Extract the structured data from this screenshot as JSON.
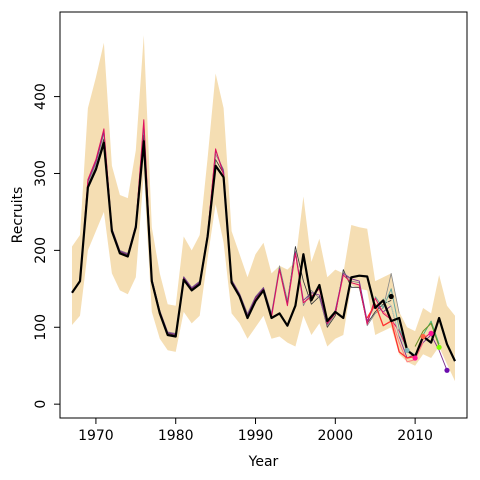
{
  "chart_data": {
    "type": "line",
    "title": "",
    "xlabel": "Year",
    "ylabel": "Recruits",
    "xlim": [
      1965.5,
      2016.5
    ],
    "ylim": [
      -18,
      510
    ],
    "xticks": [
      1970,
      1980,
      1990,
      2000,
      2010
    ],
    "yticks": [
      0,
      100,
      200,
      300,
      400
    ],
    "grid": false,
    "legend": "none",
    "band": {
      "color": "#f5deb3",
      "x": [
        1967,
        1968,
        1969,
        1970,
        1971,
        1972,
        1973,
        1974,
        1975,
        1976,
        1977,
        1978,
        1979,
        1980,
        1981,
        1982,
        1983,
        1984,
        1985,
        1986,
        1987,
        1988,
        1989,
        1990,
        1991,
        1992,
        1993,
        1994,
        1995,
        1996,
        1997,
        1998,
        1999,
        2000,
        2001,
        2002,
        2003,
        2004,
        2005,
        2006,
        2007,
        2008,
        2009,
        2010,
        2011,
        2012,
        2013,
        2014,
        2015
      ],
      "upper": [
        205,
        220,
        385,
        425,
        470,
        310,
        272,
        268,
        330,
        480,
        230,
        170,
        130,
        128,
        218,
        200,
        220,
        320,
        430,
        385,
        225,
        195,
        165,
        195,
        210,
        170,
        180,
        175,
        185,
        270,
        185,
        215,
        165,
        175,
        170,
        233,
        230,
        228,
        160,
        165,
        170,
        120,
        100,
        95,
        125,
        118,
        168,
        128,
        115
      ],
      "lower": [
        103,
        115,
        200,
        225,
        250,
        170,
        148,
        143,
        165,
        300,
        120,
        85,
        70,
        68,
        120,
        105,
        115,
        190,
        260,
        210,
        118,
        105,
        85,
        100,
        115,
        85,
        88,
        80,
        75,
        115,
        90,
        105,
        75,
        85,
        90,
        155,
        150,
        148,
        90,
        95,
        100,
        65,
        55,
        50,
        65,
        60,
        75,
        52,
        30
      ]
    },
    "series": [
      {
        "color": "#000000",
        "width": 2.2,
        "x": [
          1967,
          1968,
          1969,
          1970,
          1971,
          1972,
          1973,
          1974,
          1975,
          1976,
          1977,
          1978,
          1979,
          1980,
          1981,
          1982,
          1983,
          1984,
          1985,
          1986,
          1987,
          1988,
          1989,
          1990,
          1991,
          1992,
          1993,
          1994,
          1995,
          1996,
          1997,
          1998,
          1999,
          2000,
          2001,
          2002,
          2003,
          2004,
          2005,
          2006,
          2007,
          2008,
          2009,
          2010,
          2011,
          2012,
          2013,
          2014,
          2015
        ],
        "y": [
          145,
          160,
          282,
          305,
          340,
          225,
          196,
          192,
          230,
          342,
          160,
          118,
          90,
          88,
          162,
          148,
          156,
          218,
          310,
          295,
          158,
          140,
          112,
          134,
          148,
          112,
          118,
          102,
          128,
          195,
          135,
          155,
          108,
          120,
          112,
          165,
          167,
          166,
          125,
          135,
          108,
          112,
          70,
          62,
          88,
          80,
          112,
          78,
          56
        ]
      },
      {
        "color": "#333333",
        "width": 0.8,
        "x": [
          1967,
          1968,
          1969,
          1970,
          1971,
          1972,
          1973,
          1974,
          1975,
          1976,
          1977,
          1978,
          1979,
          1980,
          1981,
          1982,
          1983,
          1984,
          1985,
          1986,
          1987,
          1988,
          1989,
          1990,
          1991,
          1992,
          1993,
          1994,
          1995,
          1996,
          1997,
          1998,
          1999,
          2000,
          2001,
          2002,
          2003,
          2004,
          2005,
          2006,
          2007
        ],
        "y": [
          145,
          160,
          285,
          308,
          345,
          227,
          198,
          194,
          232,
          350,
          162,
          120,
          92,
          90,
          164,
          150,
          158,
          220,
          318,
          300,
          160,
          142,
          115,
          138,
          150,
          115,
          178,
          132,
          205,
          160,
          130,
          140,
          100,
          115,
          175,
          152,
          152,
          105,
          120,
          130,
          135
        ]
      },
      {
        "color": "#888888",
        "width": 0.8,
        "x": [
          1967,
          1968,
          1969,
          1970,
          1971,
          1972,
          1973,
          1974,
          1975,
          1976,
          1977,
          1978,
          1979,
          1980,
          1981,
          1982,
          1983,
          1984,
          1985,
          1986,
          1987,
          1988,
          1989,
          1990,
          1991,
          1992,
          1993,
          1994,
          1995,
          1996,
          1997,
          1998,
          1999,
          2000,
          2001,
          2002,
          2003,
          2004,
          2005,
          2006,
          2007,
          2008
        ],
        "y": [
          145,
          160,
          288,
          312,
          352,
          229,
          200,
          196,
          234,
          360,
          164,
          122,
          94,
          92,
          166,
          152,
          160,
          222,
          325,
          305,
          162,
          144,
          118,
          140,
          152,
          118,
          180,
          135,
          200,
          128,
          148,
          138,
          102,
          118,
          172,
          160,
          158,
          102,
          118,
          125,
          170,
          118
        ]
      },
      {
        "color": "#7b2d8e",
        "width": 0.9,
        "x": [
          1967,
          1968,
          1969,
          1970,
          1971,
          1972,
          1973,
          1974,
          1975,
          1976,
          1977,
          1978,
          1979,
          1980,
          1981,
          1982,
          1983,
          1984,
          1985,
          1986,
          1987,
          1988,
          1989,
          1990,
          1991,
          1992,
          1993,
          1994,
          1995,
          1996,
          1997,
          1998,
          1999,
          2000,
          2001,
          2002,
          2003,
          2004,
          2005,
          2006,
          2007,
          2008,
          2009,
          2010,
          2011,
          2012,
          2013,
          2014
        ],
        "y": [
          145,
          160,
          290,
          315,
          355,
          228,
          199,
          195,
          233,
          365,
          163,
          121,
          93,
          91,
          165,
          151,
          159,
          221,
          330,
          302,
          161,
          143,
          116,
          139,
          151,
          116,
          176,
          130,
          198,
          135,
          145,
          142,
          104,
          122,
          170,
          163,
          160,
          108,
          130,
          120,
          128,
          88,
          60,
          65,
          80,
          90,
          70,
          44
        ]
      },
      {
        "color": "#e0115f",
        "width": 1.0,
        "x": [
          1967,
          1968,
          1969,
          1970,
          1971,
          1972,
          1973,
          1974,
          1975,
          1976,
          1977,
          1978,
          1979,
          1980,
          1981,
          1982,
          1983,
          1984,
          1985,
          1986,
          1987,
          1988,
          1989,
          1990,
          1991,
          1992,
          1993,
          1994,
          1995,
          1996,
          1997,
          1998,
          1999,
          2000,
          2001,
          2002,
          2003,
          2004,
          2005,
          2006,
          2007,
          2008,
          2009,
          2010,
          2011,
          2012
        ],
        "y": [
          145,
          160,
          292,
          318,
          358,
          226,
          197,
          193,
          231,
          370,
          161,
          119,
          91,
          89,
          163,
          149,
          157,
          219,
          332,
          298,
          159,
          141,
          113,
          136,
          149,
          113,
          175,
          128,
          196,
          132,
          140,
          150,
          105,
          118,
          168,
          158,
          155,
          104,
          138,
          118,
          110,
          95,
          72,
          60,
          85,
          93
        ]
      },
      {
        "color": "#ff3030",
        "width": 1.3,
        "x": [
          2004,
          2005,
          2006,
          2007,
          2008,
          2009,
          2010,
          2011
        ],
        "y": [
          112,
          130,
          102,
          108,
          68,
          60,
          62,
          88
        ]
      },
      {
        "color": "#ff8080",
        "width": 1.0,
        "x": [
          2006,
          2007,
          2008,
          2009,
          2010,
          2011
        ],
        "y": [
          120,
          112,
          80,
          55,
          58,
          80
        ]
      },
      {
        "color": "#66a8a0",
        "width": 1.0,
        "x": [
          2005,
          2006,
          2007,
          2008,
          2009
        ],
        "y": [
          140,
          125,
          150,
          98,
          75
        ]
      },
      {
        "color": "#b8d8b8",
        "width": 1.0,
        "x": [
          2006,
          2007,
          2008,
          2009,
          2010
        ],
        "y": [
          138,
          128,
          90,
          70,
          65
        ]
      },
      {
        "color": "#6b8e23",
        "width": 1.0,
        "x": [
          2010,
          2011,
          2012,
          2013
        ],
        "y": [
          75,
          95,
          105,
          75
        ]
      },
      {
        "color": "#3cb371",
        "width": 0.9,
        "x": [
          2011,
          2012,
          2013
        ],
        "y": [
          90,
          108,
          78
        ]
      }
    ],
    "endpoints": [
      {
        "x": 2007,
        "y": 140,
        "color": "#000000"
      },
      {
        "x": 2009,
        "y": 70,
        "color": "#7fb3b3"
      },
      {
        "x": 2010,
        "y": 60,
        "color": "#ff1493"
      },
      {
        "x": 2011,
        "y": 88,
        "color": "#ff6347"
      },
      {
        "x": 2012,
        "y": 92,
        "color": "#ff1493"
      },
      {
        "x": 2013,
        "y": 74,
        "color": "#7fff00"
      },
      {
        "x": 2014,
        "y": 44,
        "color": "#6a0dad"
      }
    ]
  }
}
